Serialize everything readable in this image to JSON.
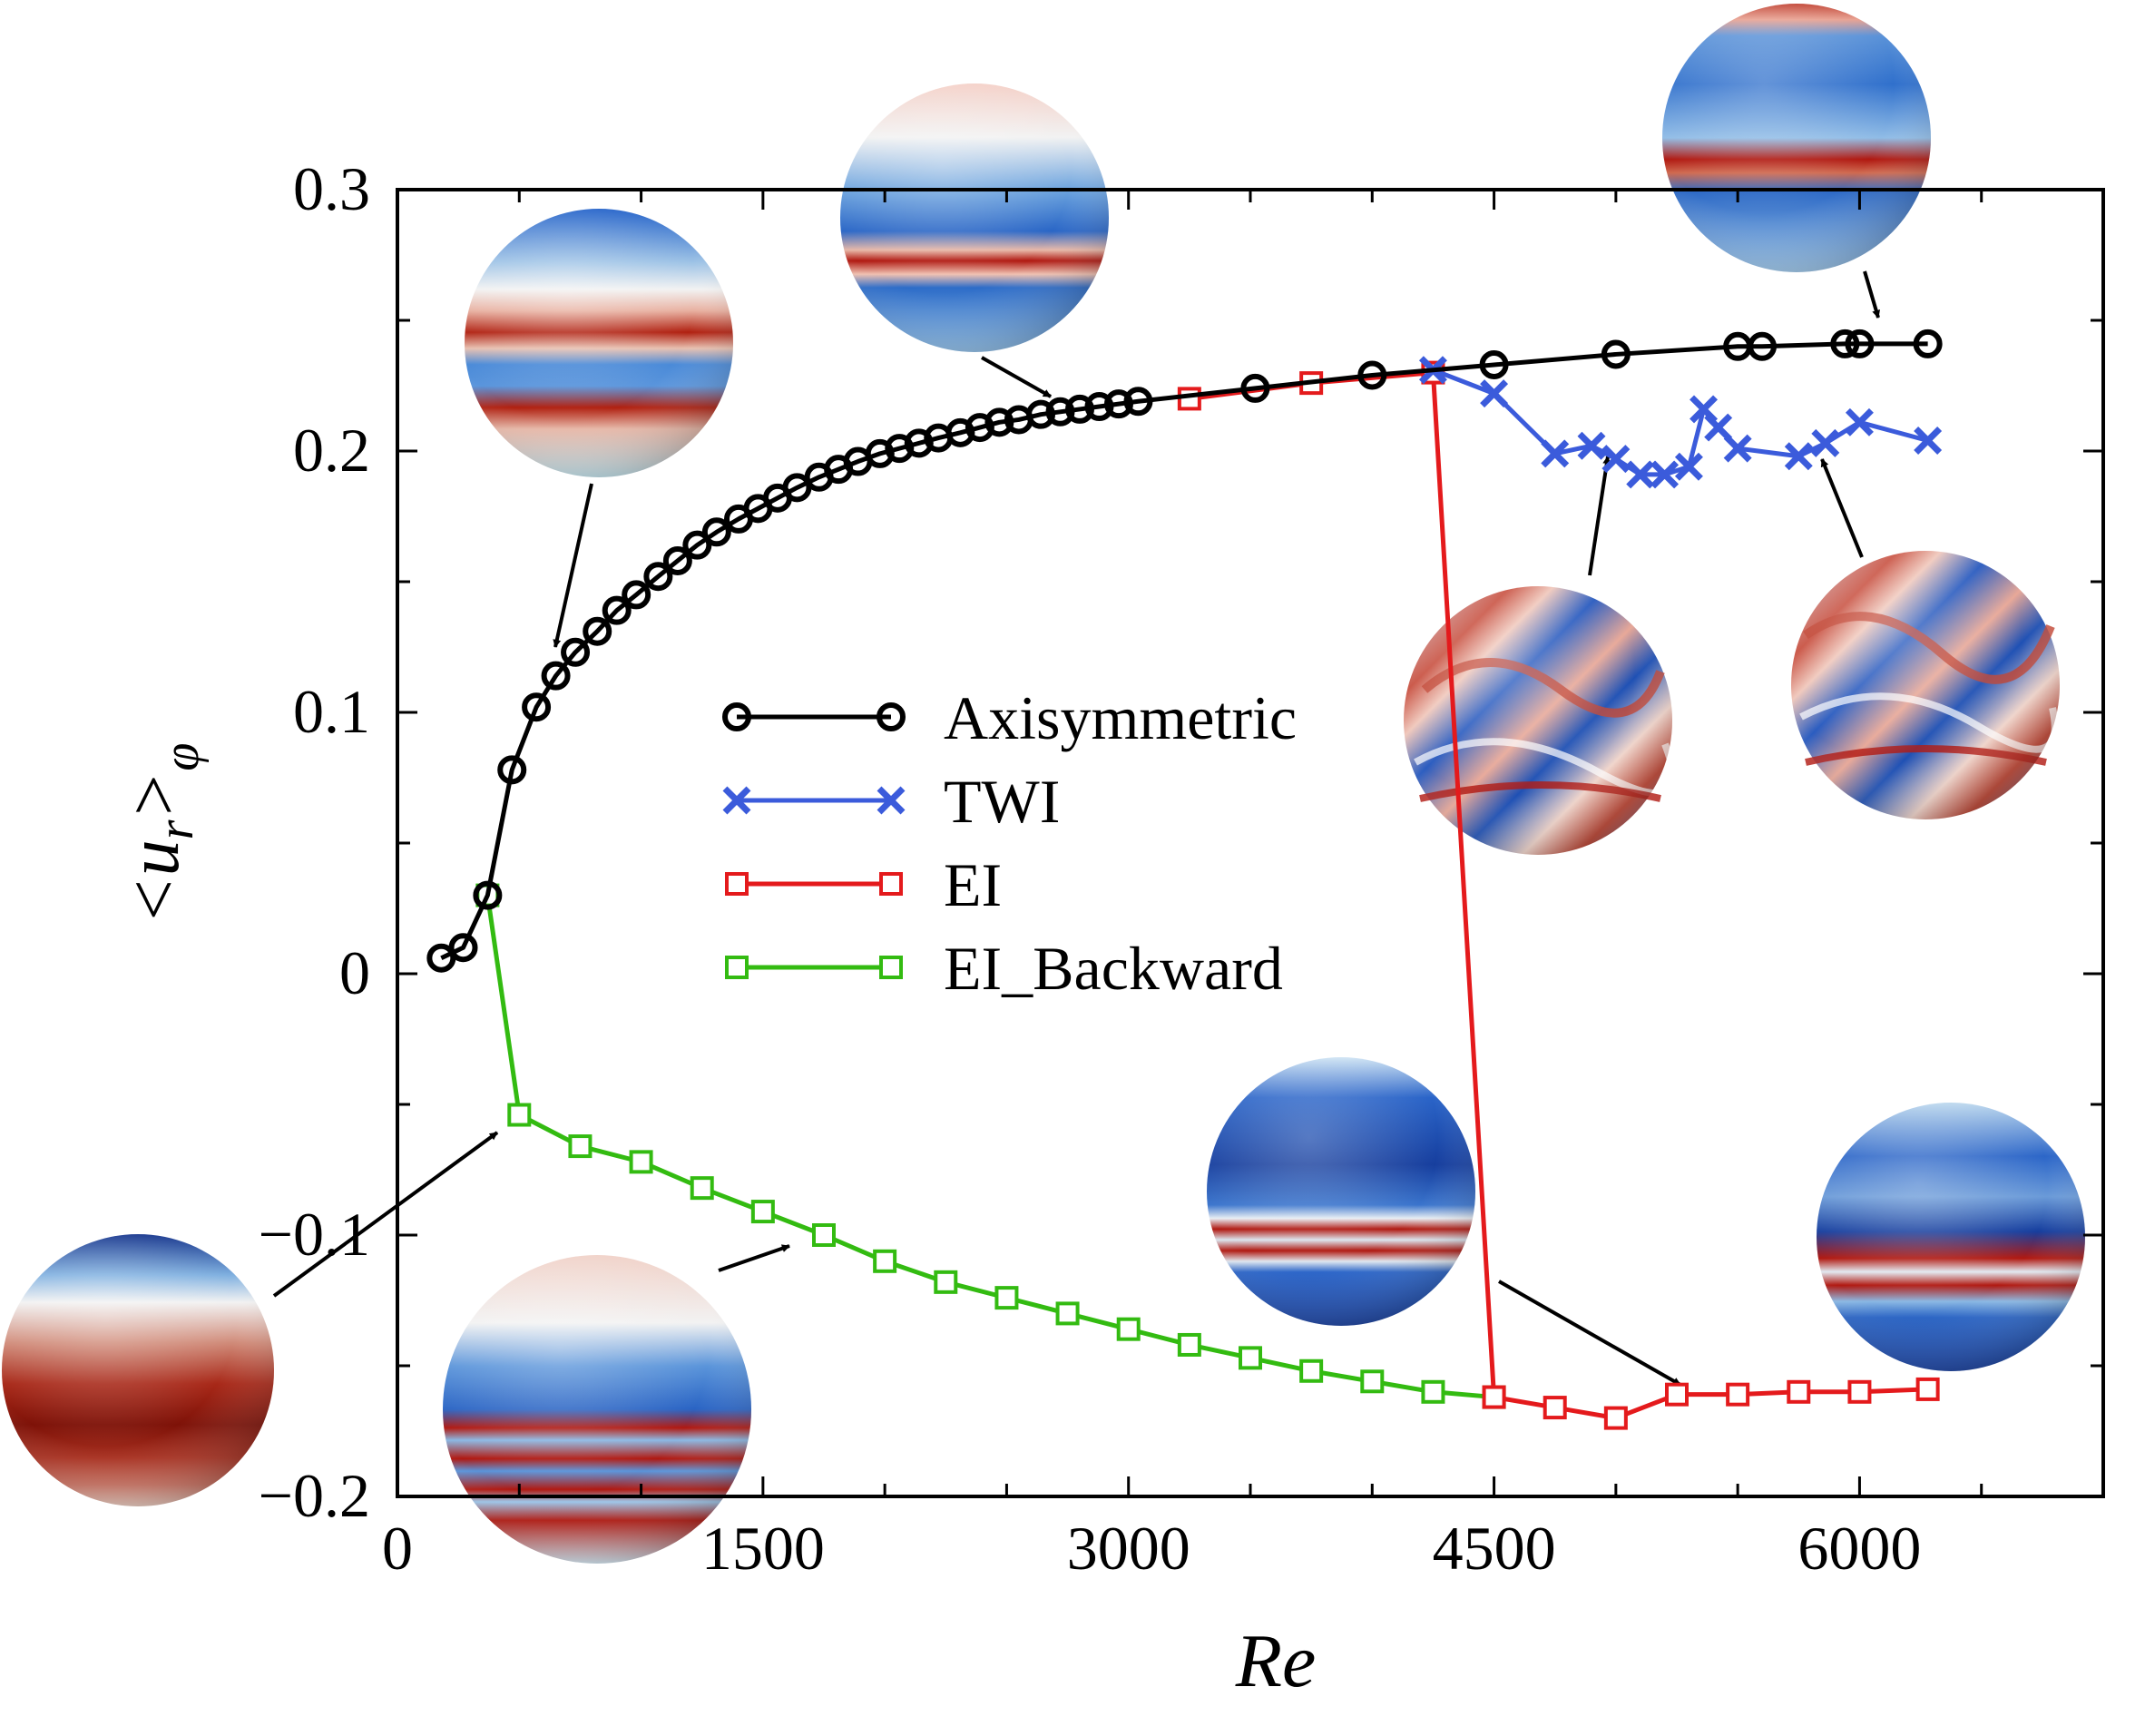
{
  "chart_data": {
    "type": "line",
    "xlabel": "Re",
    "ylabel": {
      "main": "<u",
      "sub": "r",
      "close": ">",
      "sub2": "φ"
    },
    "xlim": [
      0,
      7000
    ],
    "ylim": [
      -0.2,
      0.3
    ],
    "xticks": [
      0,
      1500,
      3000,
      4500,
      6000
    ],
    "xtick_labels": [
      "0",
      "1500",
      "3000",
      "4500",
      "6000"
    ],
    "yticks": [
      -0.2,
      -0.1,
      0,
      0.1,
      0.2,
      0.3
    ],
    "ytick_labels": [
      "−0.2",
      "−0.1",
      "0",
      "0.1",
      "0.2",
      "0.3"
    ],
    "grid": false,
    "legend_position": "center",
    "series": [
      {
        "name": "Axisymmetric",
        "color": "#000000",
        "marker": "circle",
        "x": [
          180,
          270,
          370,
          470,
          570,
          650,
          730,
          820,
          900,
          980,
          1070,
          1150,
          1230,
          1310,
          1400,
          1480,
          1560,
          1640,
          1730,
          1810,
          1890,
          1980,
          2060,
          2140,
          2220,
          2310,
          2390,
          2470,
          2550,
          2640,
          2720,
          2800,
          2880,
          2960,
          3040,
          3520,
          4000,
          4500,
          5000,
          5500,
          5600,
          5940,
          6000,
          6280
        ],
        "y": [
          0.006,
          0.01,
          0.03,
          0.078,
          0.102,
          0.114,
          0.123,
          0.131,
          0.139,
          0.145,
          0.152,
          0.158,
          0.164,
          0.169,
          0.174,
          0.178,
          0.182,
          0.186,
          0.19,
          0.193,
          0.196,
          0.199,
          0.201,
          0.203,
          0.205,
          0.207,
          0.209,
          0.211,
          0.212,
          0.214,
          0.215,
          0.216,
          0.217,
          0.218,
          0.219,
          0.224,
          0.229,
          0.233,
          0.237,
          0.24,
          0.24,
          0.241,
          0.241,
          0.241
        ]
      },
      {
        "name": "TWI",
        "color": "#3b5bdb",
        "marker": "x",
        "x": [
          4250,
          4500,
          4750,
          4900,
          5000,
          5100,
          5200,
          5300,
          5360,
          5420,
          5500,
          5750,
          5860,
          6000,
          6280
        ],
        "y": [
          0.231,
          0.222,
          0.199,
          0.202,
          0.197,
          0.191,
          0.191,
          0.194,
          0.216,
          0.209,
          0.201,
          0.198,
          0.203,
          0.211,
          0.204
        ]
      },
      {
        "name": "EI",
        "color": "#e41a1c",
        "marker": "square",
        "x": [
          3250,
          3750,
          4250,
          4500,
          4750,
          5000,
          5250,
          5500,
          5750,
          6000,
          6280
        ],
        "y": [
          0.22,
          0.226,
          0.23,
          -0.162,
          -0.166,
          -0.17,
          -0.161,
          -0.161,
          -0.16,
          -0.16,
          -0.159
        ]
      },
      {
        "name": "EI_Backward",
        "color": "#33bb11",
        "marker": "square",
        "x": [
          370,
          500,
          750,
          1000,
          1250,
          1500,
          1750,
          2000,
          2250,
          2500,
          2750,
          3000,
          3250,
          3500,
          3750,
          4000,
          4250,
          4500
        ],
        "y": [
          0.03,
          -0.054,
          -0.066,
          -0.072,
          -0.082,
          -0.091,
          -0.1,
          -0.11,
          -0.118,
          -0.124,
          -0.13,
          -0.136,
          -0.142,
          -0.147,
          -0.152,
          -0.156,
          -0.16,
          -0.162
        ]
      }
    ],
    "insets": [
      {
        "type": "sphere",
        "pattern": "axisymmetric-banded-red",
        "points_to": {
          "x": 360,
          "y": 0.118
        }
      },
      {
        "type": "sphere",
        "pattern": "axisymmetric-equatorial-band",
        "points_to": {
          "x": 2650,
          "y": 0.21
        }
      },
      {
        "type": "sphere",
        "pattern": "axisymmetric-polar-spot",
        "points_to": {
          "x": 5950,
          "y": 0.241
        }
      },
      {
        "type": "sphere",
        "pattern": "twi-turbulent",
        "points_to": {
          "x": 4900,
          "y": 0.197
        }
      },
      {
        "type": "sphere",
        "pattern": "twi-turbulent",
        "points_to": {
          "x": 5750,
          "y": 0.198
        }
      },
      {
        "type": "sphere",
        "pattern": "red-dominated-north-blue",
        "points_to": {
          "x": 400,
          "y": -0.06
        }
      },
      {
        "type": "sphere",
        "pattern": "ei-backward-multiband",
        "points_to": {
          "x": 1600,
          "y": -0.102
        }
      },
      {
        "type": "sphere",
        "pattern": "ei-blue-equatorial-bands",
        "points_to": {
          "x": 5250,
          "y": -0.16
        }
      },
      {
        "type": "sphere",
        "pattern": "ei-blue-wavy-bands",
        "points_to": null
      }
    ]
  }
}
